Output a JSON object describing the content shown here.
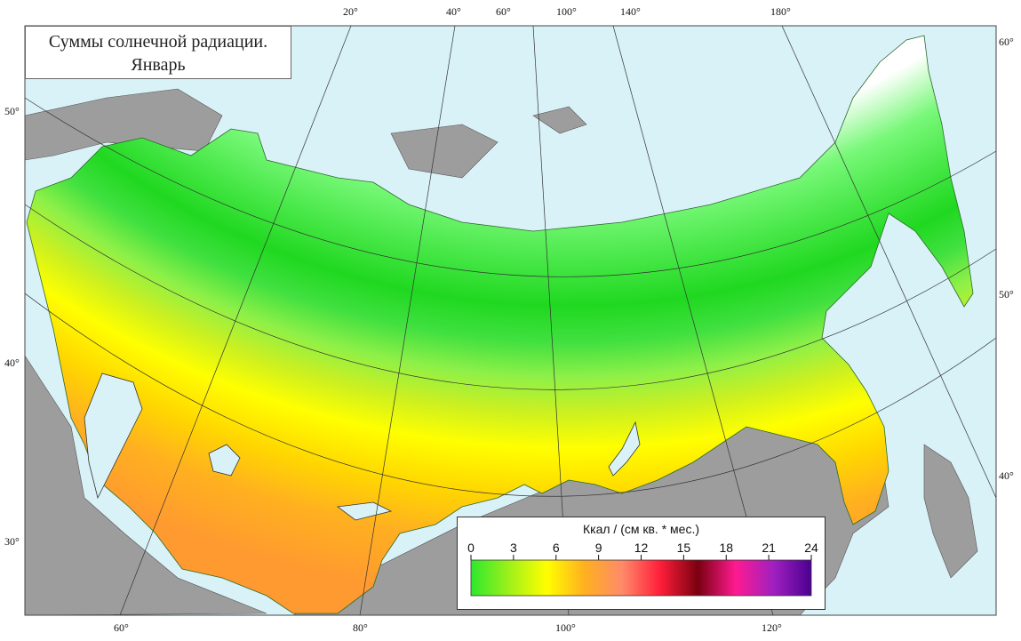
{
  "map": {
    "title_line1": "Суммы солнечной радиации.",
    "title_line2": "Январь",
    "top_labels": [
      "20°",
      "40°",
      "60°",
      "100°",
      "140°",
      "180°"
    ],
    "bottom_labels": [
      "60°",
      "80°",
      "100°",
      "120°"
    ],
    "left_labels": [
      "50°",
      "40°",
      "30°"
    ],
    "right_labels": [
      "60°",
      "50°",
      "40°"
    ]
  },
  "legend": {
    "title": "Ккал / (см кв. * мес.)",
    "ticks": [
      "0",
      "3",
      "6",
      "9",
      "12",
      "15",
      "18",
      "21",
      "24"
    ],
    "gradient": [
      "#2de82d",
      "#9ef01a",
      "#ffff00",
      "#ffb020",
      "#ff8a6a",
      "#ff1e3a",
      "#7a0010",
      "#ff1a90",
      "#a020c0",
      "#4b0090"
    ]
  },
  "colors": {
    "sea": "#d9f2f7",
    "land_outside": "#9d9d9d",
    "snow_band": "#ffffff",
    "zone_colors": [
      "#ffffff",
      "#78f878",
      "#4ae84a",
      "#20d820",
      "#40e040",
      "#8ef048",
      "#ccf020",
      "#ffff00",
      "#ffd700",
      "#ffb020",
      "#ff9a30"
    ]
  }
}
